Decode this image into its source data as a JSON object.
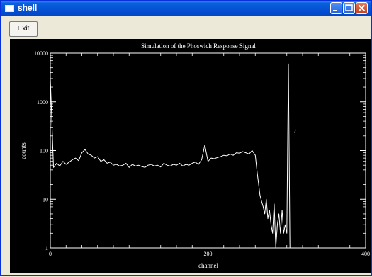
{
  "window": {
    "title": "shell"
  },
  "toolbar": {
    "exit_label": "Exit"
  },
  "chart_data": {
    "type": "line",
    "title": "Simulation of the Phoswich Response Signal",
    "xlabel": "channel",
    "ylabel": "counts",
    "xlim": [
      0,
      400
    ],
    "ylim": [
      1,
      10000
    ],
    "yscale": "log",
    "x_ticks": [
      "0",
      "200",
      "400"
    ],
    "y_ticks": [
      "1",
      "10",
      "100",
      "1000",
      "10000"
    ],
    "grid": false,
    "colors": {
      "background": "#000000",
      "line": "#ffffff"
    },
    "series": [
      {
        "x": [
          0,
          4,
          8,
          12,
          16,
          20,
          24,
          28,
          32,
          36,
          40,
          44,
          48,
          52,
          56,
          60,
          64,
          68,
          72,
          76,
          80,
          84,
          88,
          92,
          96,
          100,
          104,
          108,
          112,
          116,
          120,
          124,
          128,
          132,
          136,
          140,
          144,
          148,
          152,
          156,
          160,
          164,
          168,
          172,
          176,
          180,
          184,
          188,
          192,
          196,
          200,
          204,
          208,
          212,
          216,
          220,
          224,
          228,
          232,
          236,
          240,
          244,
          248,
          252,
          256,
          260,
          262,
          264,
          266,
          268,
          270,
          272,
          274,
          276,
          278,
          280,
          282,
          284,
          286,
          288,
          290,
          292,
          294,
          296,
          298,
          300,
          302,
          304
        ],
        "y": [
          3000,
          45,
          55,
          48,
          60,
          52,
          58,
          65,
          70,
          62,
          90,
          105,
          85,
          80,
          70,
          75,
          60,
          65,
          55,
          58,
          50,
          52,
          48,
          50,
          55,
          45,
          52,
          48,
          50,
          47,
          45,
          50,
          52,
          48,
          50,
          46,
          55,
          50,
          48,
          52,
          50,
          55,
          48,
          52,
          50,
          55,
          58,
          52,
          65,
          130,
          60,
          70,
          68,
          72,
          75,
          80,
          78,
          85,
          80,
          90,
          88,
          95,
          90,
          85,
          100,
          80,
          40,
          22,
          12,
          9,
          7,
          5,
          10,
          4,
          6,
          3,
          2,
          8,
          1,
          3,
          5,
          2,
          6,
          2,
          3,
          2,
          6000,
          1
        ]
      },
      {
        "x": [
          310,
          311
        ],
        "y": [
          230,
          270
        ]
      }
    ]
  }
}
